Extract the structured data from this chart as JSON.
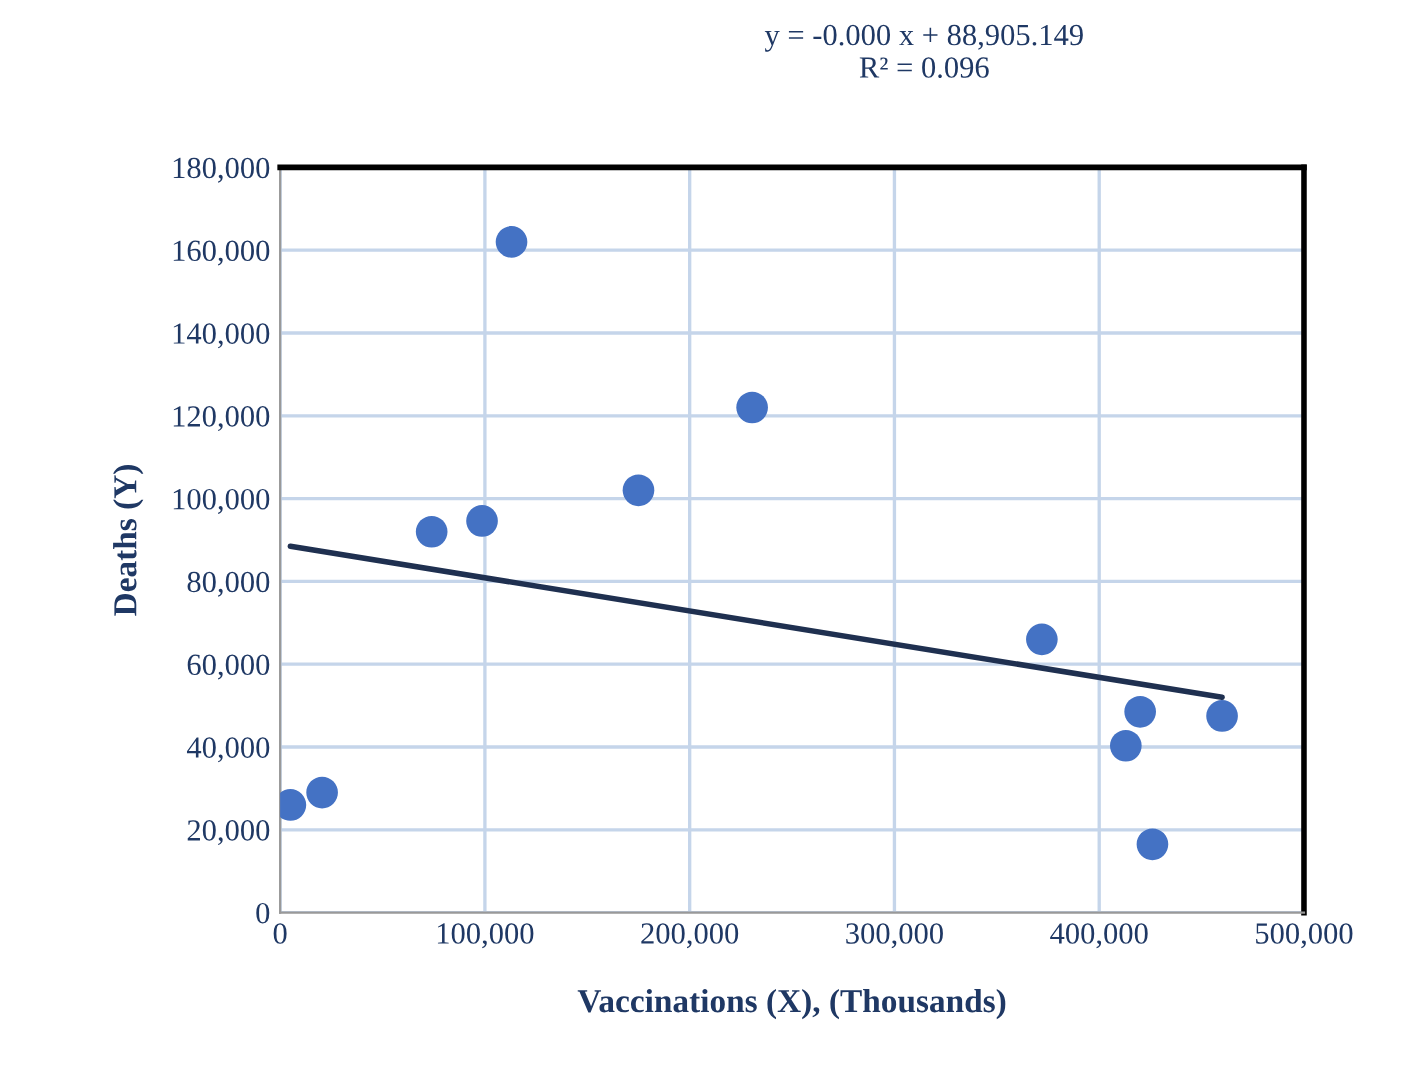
{
  "chart_data": {
    "type": "scatter",
    "xlabel": "Vaccinations (X), (Thousands)",
    "ylabel": "Deaths (Y)",
    "annotations": [
      "y = -0.000 x + 88,905.149",
      "R² = 0.096"
    ],
    "series": [
      {
        "color": "#4472c4",
        "marker": "circle",
        "x": [
          5000,
          20500,
          74000,
          98600,
          113000,
          175000,
          230500,
          372000,
          413000,
          420000,
          426000,
          460000
        ],
        "values": [
          26000,
          29000,
          92000,
          94600,
          162000,
          102000,
          122000,
          66000,
          40300,
          48500,
          16500,
          47500
        ]
      },
      {
        "type": "line",
        "color": "#1f3050",
        "x": [
          5000,
          460000
        ],
        "values": [
          88500,
          52000
        ]
      }
    ],
    "xlim": [
      0,
      500000
    ],
    "xticks": [
      {
        "value": 0,
        "label": "0"
      },
      {
        "value": 100000,
        "label": "100,000"
      },
      {
        "value": 200000,
        "label": "200,000"
      },
      {
        "value": 300000,
        "label": "300,000"
      },
      {
        "value": 400000,
        "label": "400,000"
      },
      {
        "value": 500000,
        "label": "500,000"
      }
    ],
    "ylim": [
      0,
      180000
    ],
    "yticks": [
      {
        "value": 0,
        "label": "0"
      },
      {
        "value": 20000,
        "label": "20,000"
      },
      {
        "value": 40000,
        "label": "40,000"
      },
      {
        "value": 60000,
        "label": "60,000"
      },
      {
        "value": 80000,
        "label": "80,000"
      },
      {
        "value": 100000,
        "label": "100,000"
      },
      {
        "value": 120000,
        "label": "120,000"
      },
      {
        "value": 140000,
        "label": "140,000"
      },
      {
        "value": 160000,
        "label": "160,000"
      },
      {
        "value": 180000,
        "label": "180,000"
      }
    ],
    "grid": true
  }
}
